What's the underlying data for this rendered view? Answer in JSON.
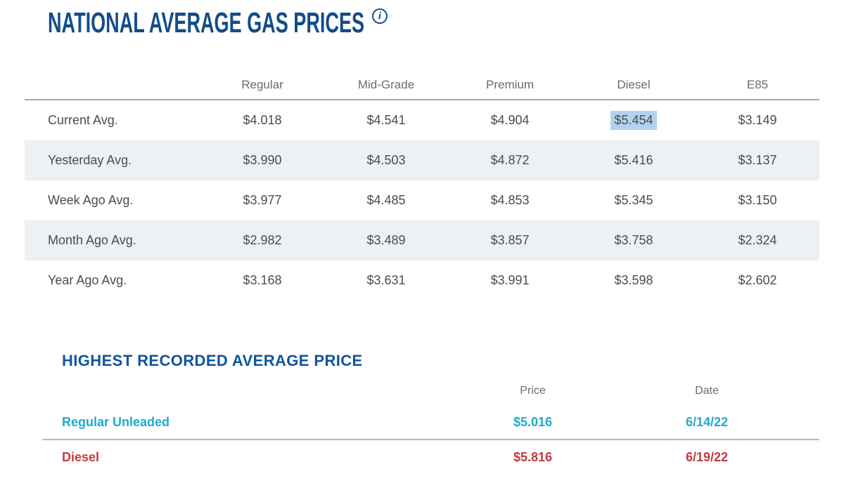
{
  "header": {
    "title": "NATIONAL AVERAGE GAS PRICES",
    "info_icon_glyph": "i"
  },
  "colors": {
    "title_blue": "#134d87",
    "subtitle_blue": "#10549e",
    "header_gray": "#6b6b6b",
    "cell_gray": "#4c4c4c",
    "row_stripe": "#ecf1f6",
    "divider_gray": "#a8a8a8",
    "selection_highlight": "#b3d2f1",
    "regular_unleaded_teal": "#21a9cd",
    "diesel_red": "#c23b42"
  },
  "gas_table": {
    "columns": [
      "Regular",
      "Mid-Grade",
      "Premium",
      "Diesel",
      "E85"
    ],
    "rows": [
      {
        "label": "Current Avg.",
        "values": [
          "$4.018",
          "$4.541",
          "$4.904",
          "$5.454",
          "$3.149"
        ],
        "highlighted_column": "Diesel"
      },
      {
        "label": "Yesterday Avg.",
        "values": [
          "$3.990",
          "$4.503",
          "$4.872",
          "$5.416",
          "$3.137"
        ]
      },
      {
        "label": "Week Ago Avg.",
        "values": [
          "$3.977",
          "$4.485",
          "$4.853",
          "$5.345",
          "$3.150"
        ]
      },
      {
        "label": "Month Ago Avg.",
        "values": [
          "$2.982",
          "$3.489",
          "$3.857",
          "$3.758",
          "$2.324"
        ]
      },
      {
        "label": "Year Ago Avg.",
        "values": [
          "$3.168",
          "$3.631",
          "$3.991",
          "$3.598",
          "$2.602"
        ]
      }
    ]
  },
  "highest_recorded": {
    "title": "HIGHEST RECORDED AVERAGE PRICE",
    "columns": [
      "Price",
      "Date"
    ],
    "rows": [
      {
        "label": "Regular Unleaded",
        "price": "$5.016",
        "date": "6/14/22",
        "color": "teal"
      },
      {
        "label": "Diesel",
        "price": "$5.816",
        "date": "6/19/22",
        "color": "red"
      }
    ]
  }
}
